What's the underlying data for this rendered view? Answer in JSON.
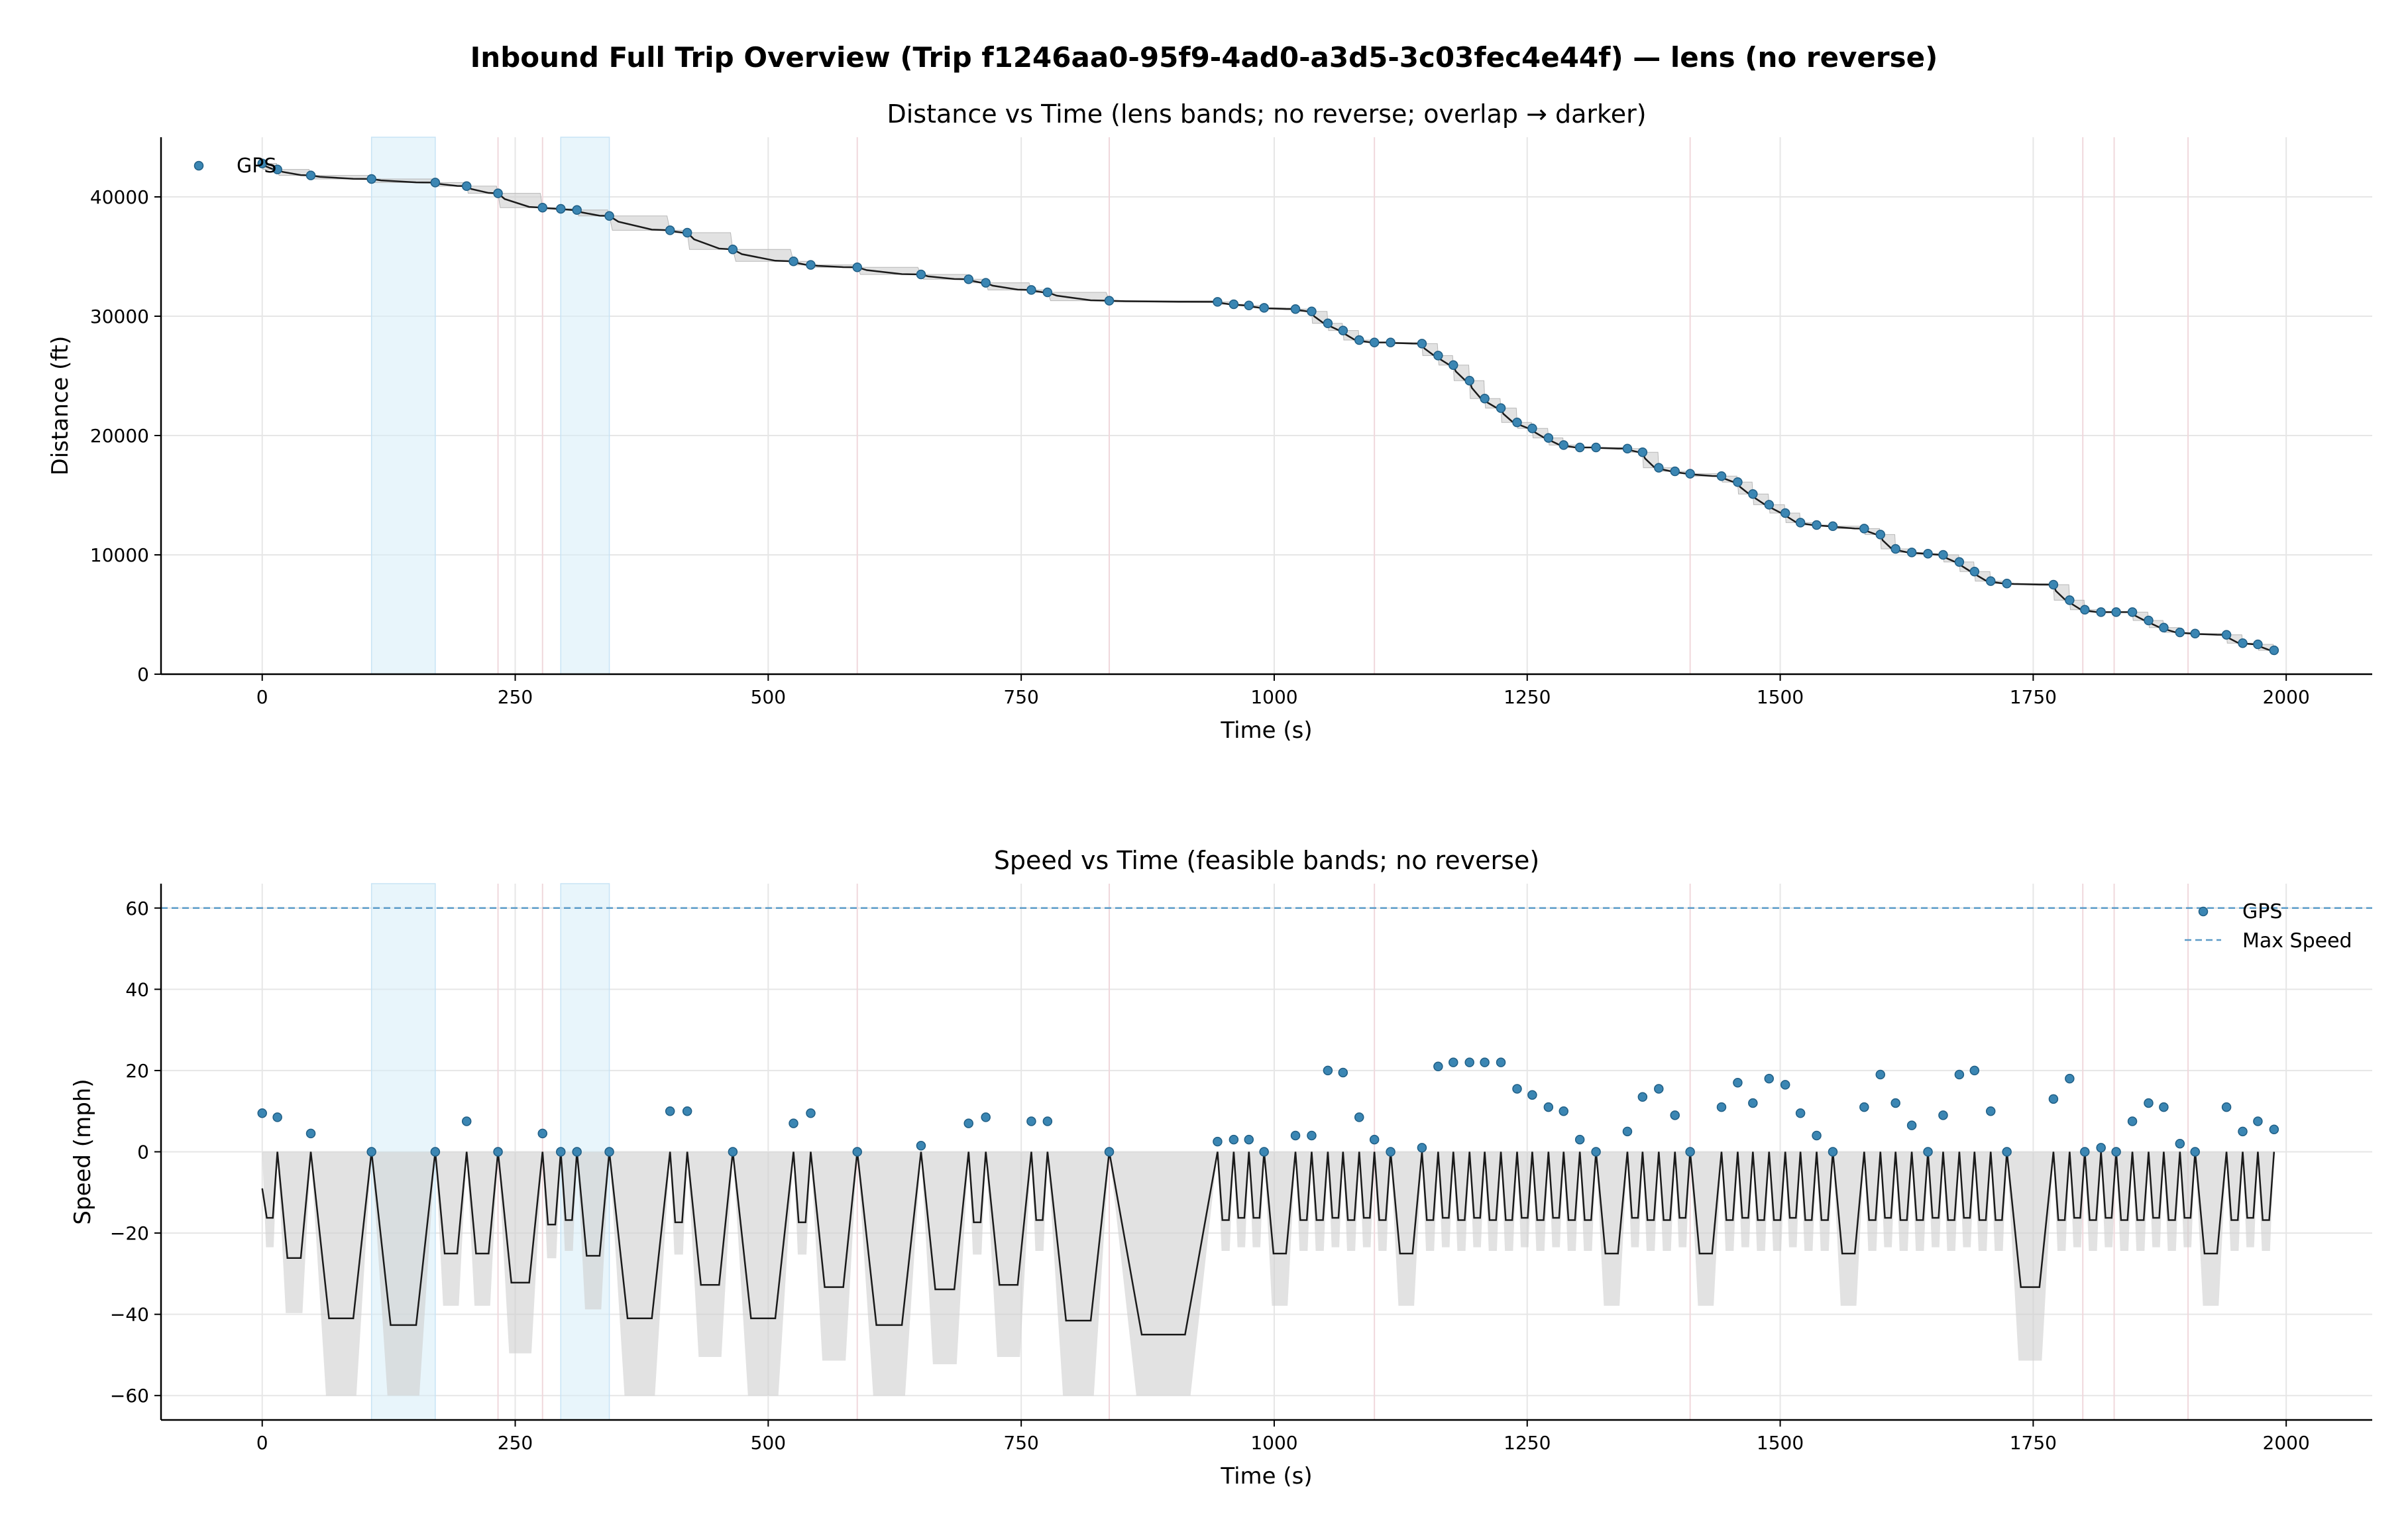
{
  "figure": {
    "title": "Inbound Full Trip Overview (Trip f1246aa0-95f9-4ad0-a3d5-3c03fec4e44f) — lens (no reverse)"
  },
  "colors": {
    "gps_marker": "#3b86b3",
    "gps_edge": "#1f5e85",
    "lens_band": "#d6ecf8",
    "feasible_band": "#cfcfcf",
    "line": "#1a1a1a",
    "max_speed_line": "#5b9bc8",
    "vertical_line": "#f0d8dc",
    "grid": "#e6e6e6"
  },
  "chart_data": [
    {
      "type": "line",
      "title": "Distance vs Time (lens bands; no reverse; overlap → darker)",
      "xlabel": "Time (s)",
      "ylabel": "Distance (ft)",
      "xlim": [
        -100,
        2085
      ],
      "ylim": [
        0,
        45000
      ],
      "xticks": [
        0,
        250,
        500,
        750,
        1000,
        1250,
        1500,
        1750,
        2000
      ],
      "yticks": [
        0,
        10000,
        20000,
        30000,
        40000
      ],
      "grid": true,
      "legend": {
        "placement": "upper left",
        "entries": [
          "GPS"
        ]
      },
      "lens_bands": [
        [
          108,
          171
        ],
        [
          295,
          343
        ]
      ],
      "series": [
        {
          "name": "GPS",
          "x": [
            0,
            15,
            48,
            108,
            171,
            202,
            233,
            277,
            295,
            311,
            343,
            403,
            420,
            465,
            525,
            542,
            588,
            651,
            698,
            715,
            760,
            776,
            837,
            944,
            960,
            975,
            990,
            1021,
            1037,
            1053,
            1068,
            1084,
            1099,
            1115,
            1146,
            1162,
            1177,
            1193,
            1208,
            1224,
            1240,
            1255,
            1271,
            1286,
            1302,
            1318,
            1349,
            1364,
            1380,
            1396,
            1411,
            1442,
            1458,
            1473,
            1489,
            1505,
            1520,
            1536,
            1552,
            1583,
            1599,
            1614,
            1630,
            1646,
            1661,
            1677,
            1692,
            1708,
            1724,
            1770,
            1786,
            1801,
            1817,
            1832,
            1848,
            1864,
            1879,
            1895,
            1910,
            1941,
            1957,
            1972,
            1988
          ],
          "y": [
            42800,
            42300,
            41800,
            41500,
            41200,
            40900,
            40300,
            39100,
            39000,
            38900,
            38400,
            37200,
            37000,
            35600,
            34600,
            34300,
            34100,
            33500,
            33100,
            32800,
            32200,
            32000,
            31300,
            31200,
            31000,
            30900,
            30700,
            30600,
            30400,
            29400,
            28800,
            28000,
            27800,
            27800,
            27700,
            26700,
            25900,
            24600,
            23100,
            22300,
            21100,
            20600,
            19800,
            19200,
            19000,
            19000,
            18900,
            18600,
            17300,
            17000,
            16800,
            16600,
            16100,
            15100,
            14200,
            13500,
            12700,
            12500,
            12400,
            12200,
            11700,
            10500,
            10200,
            10100,
            10000,
            9400,
            8600,
            7800,
            7600,
            7500,
            6200,
            5400,
            5200,
            5200,
            5200,
            4500,
            3900,
            3500,
            3400,
            3300,
            2600,
            2500,
            2000
          ]
        }
      ]
    },
    {
      "type": "line",
      "title": "Speed vs Time (feasible bands; no reverse)",
      "xlabel": "Time (s)",
      "ylabel": "Speed (mph)",
      "xlim": [
        -100,
        2085
      ],
      "ylim": [
        -66,
        66
      ],
      "xticks": [
        0,
        250,
        500,
        750,
        1000,
        1250,
        1500,
        1750,
        2000
      ],
      "yticks": [
        -60,
        -40,
        -20,
        0,
        20,
        40,
        60
      ],
      "grid": true,
      "legend": {
        "placement": "upper right",
        "entries": [
          "GPS",
          "Max Speed"
        ]
      },
      "max_speed": 60,
      "lens_bands": [
        [
          108,
          171
        ],
        [
          295,
          343
        ]
      ],
      "series": [
        {
          "name": "GPS",
          "x": [
            0,
            15,
            48,
            108,
            171,
            202,
            233,
            277,
            295,
            311,
            343,
            403,
            420,
            465,
            525,
            542,
            588,
            651,
            698,
            715,
            760,
            776,
            837,
            944,
            960,
            975,
            990,
            1021,
            1037,
            1053,
            1068,
            1084,
            1099,
            1115,
            1146,
            1162,
            1177,
            1193,
            1208,
            1224,
            1240,
            1255,
            1271,
            1286,
            1302,
            1318,
            1349,
            1364,
            1380,
            1396,
            1411,
            1442,
            1458,
            1473,
            1489,
            1505,
            1520,
            1536,
            1552,
            1583,
            1599,
            1614,
            1630,
            1646,
            1661,
            1677,
            1692,
            1708,
            1724,
            1770,
            1786,
            1801,
            1817,
            1832,
            1848,
            1864,
            1879,
            1895,
            1910,
            1941,
            1957,
            1972,
            1988
          ],
          "y": [
            9.5,
            8.5,
            4.5,
            0,
            0,
            7.5,
            0,
            4.5,
            0,
            0,
            0,
            10,
            10,
            0,
            7,
            9.5,
            0,
            1.5,
            7,
            8.5,
            7.5,
            7.5,
            0,
            2.5,
            3,
            3,
            0,
            4,
            4,
            20,
            19.5,
            8.5,
            3,
            0,
            1,
            21,
            22,
            22,
            22,
            22,
            15.5,
            14,
            11,
            10,
            3,
            0,
            5,
            13.5,
            15.5,
            9,
            0,
            11,
            17,
            12,
            18,
            16.5,
            9.5,
            4,
            0,
            11,
            19,
            12,
            6.5,
            0,
            9,
            19,
            20,
            10,
            0,
            13,
            18,
            0,
            1,
            0,
            7.5,
            12,
            11,
            2,
            0,
            11,
            5,
            7.5,
            5.5
          ]
        }
      ]
    }
  ]
}
